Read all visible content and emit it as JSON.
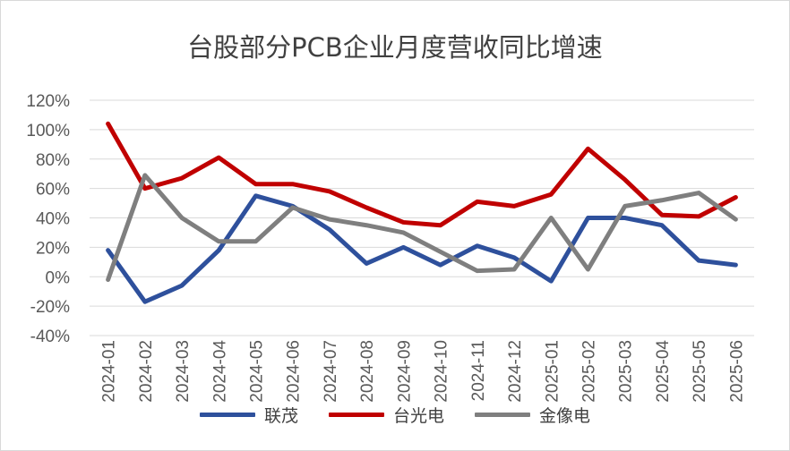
{
  "chart_data": {
    "type": "line",
    "title": "台股部分PCB企业月度营收同比增速",
    "xlabel": "",
    "ylabel": "",
    "ylim": [
      -40,
      120
    ],
    "y_ticks": [
      "120%",
      "100%",
      "80%",
      "60%",
      "40%",
      "20%",
      "0%",
      "-20%",
      "-40%"
    ],
    "y_tick_values": [
      120,
      100,
      80,
      60,
      40,
      20,
      0,
      -20,
      -40
    ],
    "categories": [
      "2024-01",
      "2024-02",
      "2024-03",
      "2024-04",
      "2024-05",
      "2024-06",
      "2024-07",
      "2024-08",
      "2024-09",
      "2024-10",
      "2024-11",
      "2024-12",
      "2025-01",
      "2025-02",
      "2025-03",
      "2025-04",
      "2025-05",
      "2025-06"
    ],
    "grid": "horizontal",
    "legend_position": "bottom",
    "series": [
      {
        "name": "联茂",
        "color": "#2e509c",
        "values": [
          18,
          -17,
          -6,
          18,
          55,
          48,
          32,
          9,
          20,
          8,
          21,
          13,
          -3,
          40,
          40,
          35,
          11,
          8
        ]
      },
      {
        "name": "台光电",
        "color": "#c00000",
        "values": [
          104,
          60,
          67,
          81,
          63,
          63,
          58,
          47,
          37,
          35,
          51,
          48,
          56,
          87,
          66,
          42,
          41,
          54
        ]
      },
      {
        "name": "金像电",
        "color": "#7f7f7f",
        "values": [
          -2,
          69,
          40,
          24,
          24,
          47,
          39,
          35,
          30,
          17,
          4,
          5,
          40,
          5,
          48,
          52,
          57,
          39
        ]
      }
    ]
  }
}
